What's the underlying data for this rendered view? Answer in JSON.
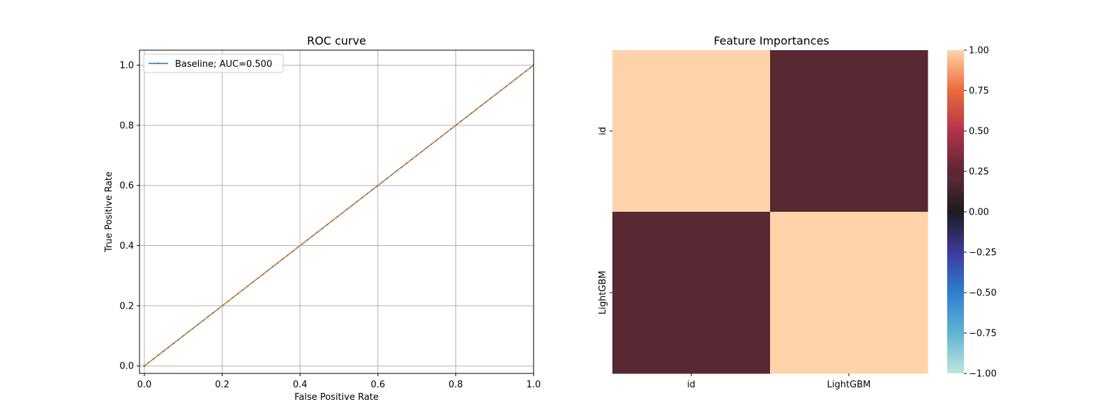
{
  "chart_data": [
    {
      "type": "line",
      "title": "ROC curve",
      "xlabel": "False Positive Rate",
      "ylabel": "True Positive Rate",
      "xlim": [
        -0.0125,
        1.0
      ],
      "ylim": [
        -0.025,
        1.05
      ],
      "xticks": [
        0.0,
        0.2,
        0.4,
        0.6,
        0.8,
        1.0
      ],
      "yticks": [
        0.0,
        0.2,
        0.4,
        0.6,
        0.8,
        1.0
      ],
      "xtick_labels": [
        "0.0",
        "0.2",
        "0.4",
        "0.6",
        "0.8",
        "1.0"
      ],
      "ytick_labels": [
        "0.0",
        "0.2",
        "0.4",
        "0.6",
        "0.8",
        "1.0"
      ],
      "grid": true,
      "legend_position": "top-left",
      "series": [
        {
          "name": "Baseline; AUC=0.500",
          "x": [
            0.0,
            1.0
          ],
          "y": [
            0.0,
            1.0
          ],
          "color": "#1f77b4",
          "style": "solid",
          "marker": "point",
          "in_legend": true
        },
        {
          "name": "Diagonal",
          "x": [
            0.0,
            1.0
          ],
          "y": [
            0.0,
            1.0
          ],
          "color": "#ff7f0e",
          "style": "dashed",
          "in_legend": false
        }
      ],
      "legend": [
        "Baseline; AUC=0.500"
      ]
    },
    {
      "type": "heatmap",
      "title": "Feature Importances",
      "row_labels": [
        "id",
        "LightGBM"
      ],
      "col_labels": [
        "id",
        "LightGBM"
      ],
      "values": [
        [
          1.0,
          0.2
        ],
        [
          0.2,
          1.0
        ]
      ],
      "colormap": "icefire",
      "vmin": -1.0,
      "vmax": 1.0,
      "colorbar_ticks": [
        1.0,
        0.75,
        0.5,
        0.25,
        0.0,
        -0.25,
        -0.5,
        -0.75,
        -1.0
      ],
      "colorbar_tick_labels": [
        "1.00",
        "0.75",
        "0.50",
        "0.25",
        "0.00",
        "−0.25",
        "−0.50",
        "−0.75",
        "−1.00"
      ],
      "colormap_stops": [
        {
          "v": -1.0,
          "color": "#bde6dd"
        },
        {
          "v": -0.75,
          "color": "#5fb4d2"
        },
        {
          "v": -0.5,
          "color": "#2f7fce"
        },
        {
          "v": -0.25,
          "color": "#3e3a9c"
        },
        {
          "v": 0.0,
          "color": "#1c1c1e"
        },
        {
          "v": 0.2,
          "color": "#582833"
        },
        {
          "v": 0.25,
          "color": "#5e2635"
        },
        {
          "v": 0.5,
          "color": "#b1354a"
        },
        {
          "v": 0.75,
          "color": "#ec6a39"
        },
        {
          "v": 1.0,
          "color": "#ffd3aa"
        }
      ]
    }
  ]
}
